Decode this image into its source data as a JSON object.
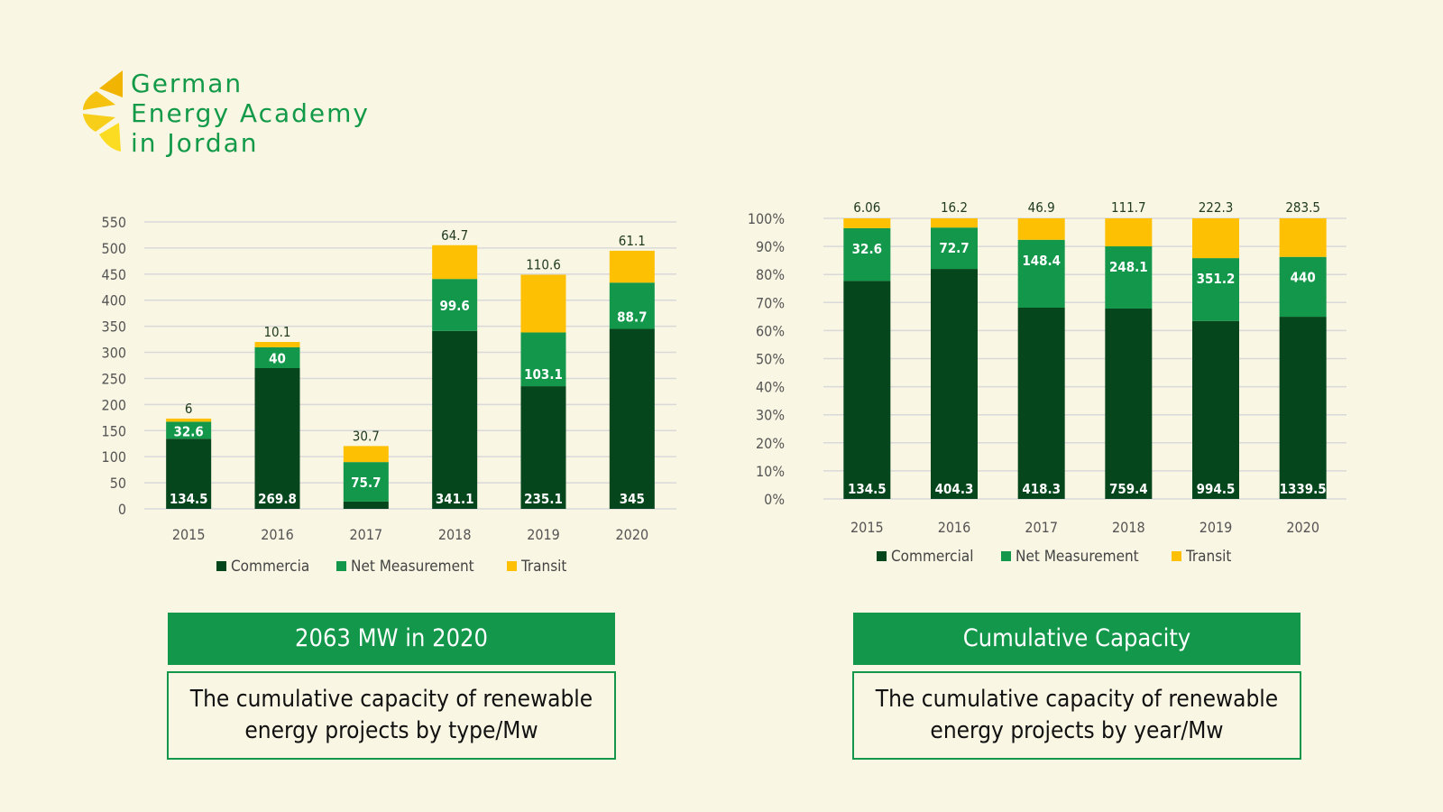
{
  "logo": {
    "lines": [
      "German",
      "Energy Academy",
      "in Jordan"
    ],
    "icon": "sun-slices-icon"
  },
  "colors": {
    "commercial": "#06461c",
    "net_measurement": "#13974a",
    "transit": "#fec002",
    "grid": "#d9d9d9",
    "brand_green": "#13974a",
    "background": "#f9f6e3"
  },
  "panels": [
    {
      "title": "2063 MW in 2020",
      "description_lines": [
        "The cumulative capacity of renewable",
        "energy projects by  type/Mw"
      ]
    },
    {
      "title": "Cumulative Capacity",
      "description_lines": [
        "The cumulative capacity of renewable",
        "energy projects by year/Mw"
      ]
    }
  ],
  "chart_data": [
    {
      "type": "bar",
      "stacked": true,
      "categories": [
        "2015",
        "2016",
        "2017",
        "2018",
        "2019",
        "2020"
      ],
      "series": [
        {
          "name": "Commercia",
          "values": [
            134.5,
            269.8,
            14,
            341.1,
            235.1,
            345
          ],
          "labels": [
            "134.5",
            "269.8",
            "",
            "341.1",
            "235.1",
            "345"
          ]
        },
        {
          "name": "Net Measurement",
          "values": [
            32.6,
            40,
            75.7,
            99.6,
            103.1,
            88.7
          ],
          "labels": [
            "32.6",
            "40",
            "75.7",
            "99.6",
            "103.1",
            "88.7"
          ]
        },
        {
          "name": "Transit",
          "values": [
            6,
            10.1,
            30.7,
            64.7,
            110.6,
            61.1
          ],
          "labels": [
            "6",
            "10.1",
            "30.7",
            "64.7",
            "110.6",
            "61.1"
          ]
        }
      ],
      "yticks": [
        "0",
        "50",
        "100",
        "150",
        "200",
        "250",
        "300",
        "350",
        "400",
        "450",
        "500",
        "550"
      ],
      "ylim": [
        0,
        550
      ],
      "ystep": 50,
      "grid": true,
      "legend": "bottom",
      "title": "",
      "xlabel": "",
      "ylabel": ""
    },
    {
      "type": "bar",
      "stacked": true,
      "normalized": true,
      "categories": [
        "2015",
        "2016",
        "2017",
        "2018",
        "2019",
        "2020"
      ],
      "series": [
        {
          "name": "Commercial",
          "values": [
            134.5,
            404.3,
            418.3,
            759.4,
            994.5,
            1339.5
          ],
          "labels": [
            "134.5",
            "404.3",
            "418.3",
            "759.4",
            "994.5",
            "1339.5"
          ]
        },
        {
          "name": "Net Measurement",
          "values": [
            32.6,
            72.7,
            148.4,
            248.1,
            351.2,
            440
          ],
          "labels": [
            "32.6",
            "72.7",
            "148.4",
            "248.1",
            "351.2",
            "440"
          ]
        },
        {
          "name": "Transit",
          "values": [
            6.06,
            16.2,
            46.9,
            111.7,
            222.3,
            283.5
          ],
          "labels": [
            "6.06",
            "16.2",
            "46.9",
            "111.7",
            "222.3",
            "283.5"
          ]
        }
      ],
      "yticks": [
        "0%",
        "10%",
        "20%",
        "30%",
        "40%",
        "50%",
        "60%",
        "70%",
        "80%",
        "90%",
        "100%"
      ],
      "ylim": [
        0,
        100
      ],
      "ystep": 10,
      "grid": true,
      "legend": "bottom",
      "title": "",
      "xlabel": "",
      "ylabel": ""
    }
  ]
}
